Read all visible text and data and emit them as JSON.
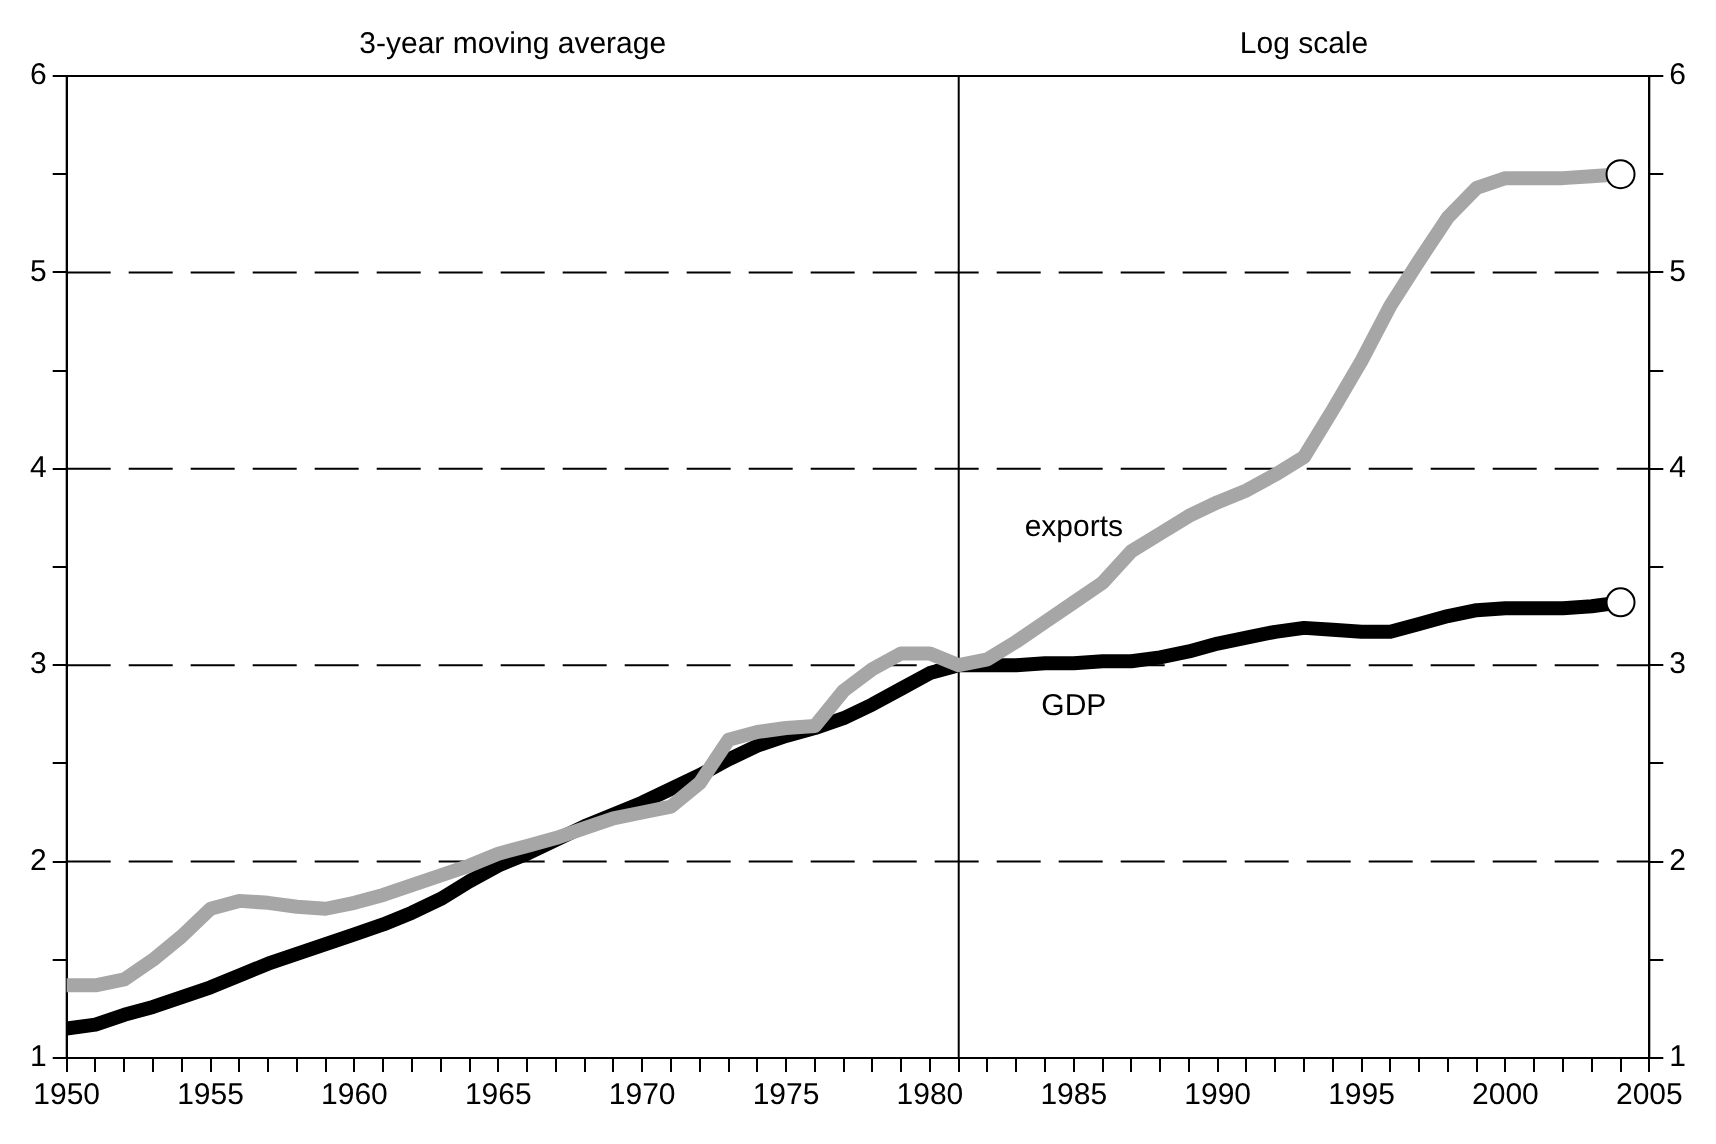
{
  "chart_data": {
    "type": "line",
    "annotations": [
      "3-year moving average",
      "Log scale"
    ],
    "x": [
      1950,
      1951,
      1952,
      1953,
      1954,
      1955,
      1956,
      1957,
      1958,
      1959,
      1960,
      1961,
      1962,
      1963,
      1964,
      1965,
      1966,
      1967,
      1968,
      1969,
      1970,
      1971,
      1972,
      1973,
      1974,
      1975,
      1976,
      1977,
      1978,
      1979,
      1980,
      1981,
      1982,
      1983,
      1984,
      1985,
      1986,
      1987,
      1988,
      1989,
      1990,
      1991,
      1992,
      1993,
      1994,
      1995,
      1996,
      1997,
      1998,
      1999,
      2000,
      2001,
      2002,
      2003,
      2004
    ],
    "series": [
      {
        "name": "exports",
        "color": "#a6a6a6",
        "values": [
          1.37,
          1.37,
          1.4,
          1.5,
          1.62,
          1.76,
          1.8,
          1.79,
          1.77,
          1.76,
          1.79,
          1.83,
          1.88,
          1.93,
          1.98,
          2.04,
          2.08,
          2.12,
          2.17,
          2.22,
          2.25,
          2.28,
          2.4,
          2.62,
          2.66,
          2.68,
          2.69,
          2.87,
          2.98,
          3.06,
          3.06,
          3.0,
          3.03,
          3.12,
          3.22,
          3.32,
          3.42,
          3.58,
          3.67,
          3.76,
          3.83,
          3.89,
          3.97,
          4.06,
          4.3,
          4.55,
          4.83,
          5.06,
          5.28,
          5.43,
          5.48,
          5.48,
          5.48,
          5.49,
          5.5
        ]
      },
      {
        "name": "GDP",
        "color": "#000000",
        "values": [
          1.15,
          1.17,
          1.22,
          1.26,
          1.31,
          1.36,
          1.42,
          1.48,
          1.53,
          1.58,
          1.63,
          1.68,
          1.74,
          1.81,
          1.9,
          1.98,
          2.04,
          2.11,
          2.18,
          2.24,
          2.3,
          2.37,
          2.44,
          2.52,
          2.59,
          2.64,
          2.68,
          2.73,
          2.8,
          2.88,
          2.96,
          3.0,
          3.0,
          3.0,
          3.01,
          3.01,
          3.02,
          3.02,
          3.04,
          3.07,
          3.11,
          3.14,
          3.17,
          3.19,
          3.18,
          3.17,
          3.17,
          3.21,
          3.25,
          3.28,
          3.29,
          3.29,
          3.29,
          3.3,
          3.32
        ]
      }
    ],
    "xlim": [
      1950,
      2005
    ],
    "xticks": [
      1950,
      {
        "value": 1951,
        "label": null
      },
      {
        "value": 1952,
        "label": null
      },
      {
        "value": 1953,
        "label": null
      },
      {
        "value": 1954,
        "label": null
      },
      1955,
      {
        "value": 1956,
        "label": null
      },
      {
        "value": 1957,
        "label": null
      },
      {
        "value": 1958,
        "label": null
      },
      {
        "value": 1959,
        "label": null
      },
      1960,
      {
        "value": 1961,
        "label": null
      },
      {
        "value": 1962,
        "label": null
      },
      {
        "value": 1963,
        "label": null
      },
      {
        "value": 1964,
        "label": null
      },
      1965,
      {
        "value": 1966,
        "label": null
      },
      {
        "value": 1967,
        "label": null
      },
      {
        "value": 1968,
        "label": null
      },
      {
        "value": 1969,
        "label": null
      },
      1970,
      {
        "value": 1971,
        "label": null
      },
      {
        "value": 1972,
        "label": null
      },
      {
        "value": 1973,
        "label": null
      },
      {
        "value": 1974,
        "label": null
      },
      1975,
      {
        "value": 1976,
        "label": null
      },
      {
        "value": 1977,
        "label": null
      },
      {
        "value": 1978,
        "label": null
      },
      {
        "value": 1979,
        "label": null
      },
      1980,
      {
        "value": 1981,
        "label": null
      },
      {
        "value": 1982,
        "label": null
      },
      {
        "value": 1983,
        "label": null
      },
      {
        "value": 1984,
        "label": null
      },
      1985,
      {
        "value": 1986,
        "label": null
      },
      {
        "value": 1987,
        "label": null
      },
      {
        "value": 1988,
        "label": null
      },
      {
        "value": 1989,
        "label": null
      },
      1990,
      {
        "value": 1991,
        "label": null
      },
      {
        "value": 1992,
        "label": null
      },
      {
        "value": 1993,
        "label": null
      },
      {
        "value": 1994,
        "label": null
      },
      1995,
      {
        "value": 1996,
        "label": null
      },
      {
        "value": 1997,
        "label": null
      },
      {
        "value": 1998,
        "label": null
      },
      {
        "value": 1999,
        "label": null
      },
      2000,
      {
        "value": 2001,
        "label": null
      },
      {
        "value": 2002,
        "label": null
      },
      {
        "value": 2003,
        "label": null
      },
      {
        "value": 2004,
        "label": null
      },
      2005
    ],
    "ylim": [
      1,
      6
    ],
    "yticks": [
      1,
      {
        "value": 1.5,
        "label": null
      },
      2,
      {
        "value": 2.5,
        "label": null
      },
      3,
      {
        "value": 3.5,
        "label": null
      },
      4,
      {
        "value": 4.5,
        "label": null
      },
      5,
      {
        "value": 5.5,
        "label": null
      },
      6
    ],
    "y2lim": [
      1,
      6
    ],
    "y2ticks": [
      1,
      {
        "value": 1.5,
        "label": null
      },
      2,
      {
        "value": 2.5,
        "label": null
      },
      3,
      {
        "value": 3.5,
        "label": null
      },
      4,
      {
        "value": 4.5,
        "label": null
      },
      5,
      {
        "value": 5.5,
        "label": null
      },
      6
    ],
    "grid": "y",
    "legend": false,
    "ref_lines": [
      {
        "axis": "x",
        "value": 1981,
        "color": "#000000",
        "line_style": "solid"
      }
    ]
  }
}
